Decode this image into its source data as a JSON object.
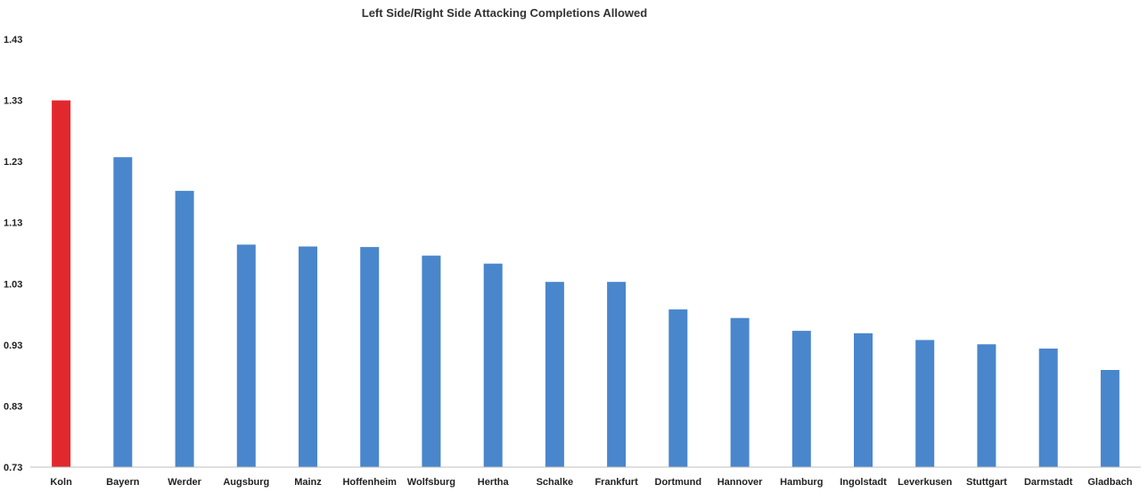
{
  "chart_data": {
    "type": "bar",
    "title": "Left Side/Right Side Attacking Completions Allowed",
    "xlabel": "",
    "ylabel": "",
    "ylim": [
      0.73,
      1.43
    ],
    "yticks": [
      "0.73",
      "0.83",
      "0.93",
      "1.03",
      "1.13",
      "1.23",
      "1.33",
      "1.43"
    ],
    "grid": false,
    "legend": "none",
    "categories": [
      "Koln",
      "Bayern",
      "Werder",
      "Augsburg",
      "Mainz",
      "Hoffenheim",
      "Wolfsburg",
      "Hertha",
      "Schalke",
      "Frankfurt",
      "Dortmund",
      "Hannover",
      "Hamburg",
      "Ingolstadt",
      "Leverkusen",
      "Stuttgart",
      "Darmstadt",
      "Gladbach"
    ],
    "values": [
      1.33,
      1.237,
      1.182,
      1.094,
      1.091,
      1.09,
      1.076,
      1.063,
      1.033,
      1.033,
      0.988,
      0.974,
      0.953,
      0.949,
      0.938,
      0.931,
      0.924,
      0.889
    ],
    "colors": {
      "highlight": "#e1282d",
      "default": "#4a86cc",
      "axis": "#bfbfbf"
    },
    "highlight_index": 0
  }
}
